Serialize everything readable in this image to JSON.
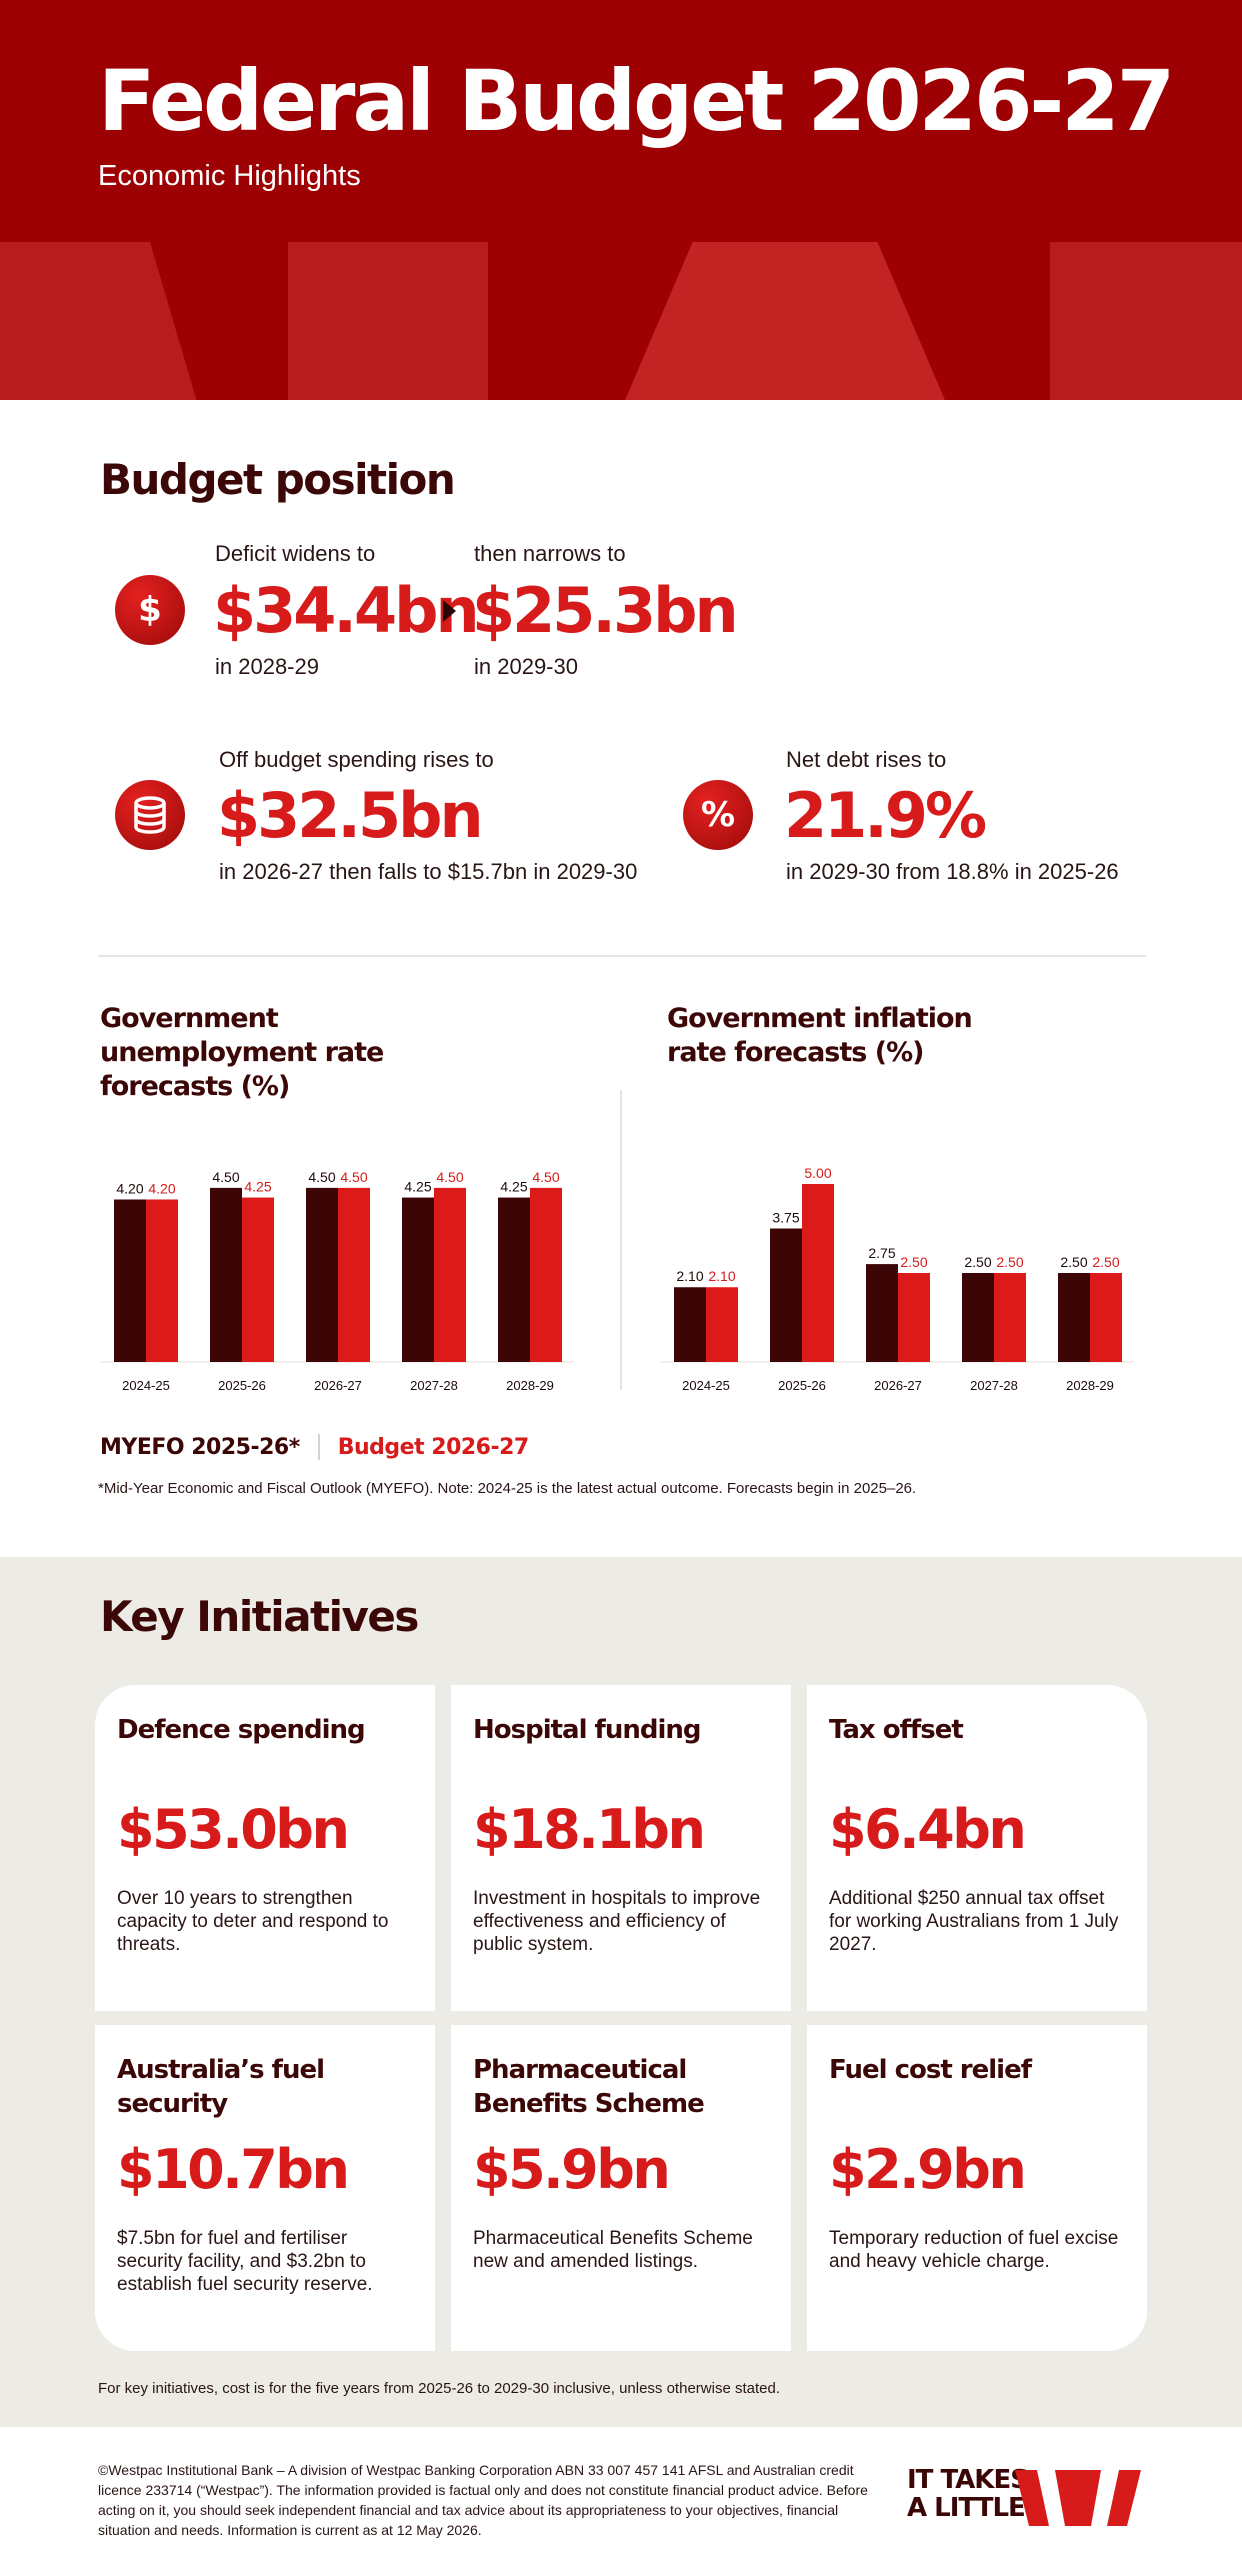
{
  "header": {
    "title": "Federal Budget 2026-27",
    "subtitle": "Economic Highlights"
  },
  "budget_position": {
    "title": "Budget position",
    "deficit": {
      "icon": "dollar-icon",
      "icon_glyph": "$",
      "label": "Deficit widens to",
      "value": "$34.4bn",
      "period": "in 2028-29"
    },
    "narrows": {
      "label": "then narrows to",
      "value": "$25.3bn",
      "period": "in 2029-30"
    },
    "off_budget": {
      "icon": "coins-icon",
      "label": "Off budget spending rises to",
      "value": "$32.5bn",
      "detail": "in 2026-27 then falls to $15.7bn in 2029-30"
    },
    "net_debt": {
      "icon": "percent-icon",
      "icon_glyph": "%",
      "label": "Net debt rises to",
      "value": "21.9%",
      "detail": "in 2029-30 from 18.8% in 2025-26"
    }
  },
  "charts": {
    "unemployment_title": "Government unemployment rate forecasts (%)",
    "inflation_title": "Government inflation rate forecasts (%)",
    "legend": {
      "myefo": "MYEFO 2025-26*",
      "budget": "Budget 2026-27"
    },
    "footnote": "*Mid-Year Economic and Fiscal Outlook (MYEFO). Note: 2024-25 is the latest actual outcome. Forecasts begin in 2025–26."
  },
  "chart_data": [
    {
      "type": "bar",
      "title": "Government unemployment rate forecasts (%)",
      "categories": [
        "2024-25",
        "2025-26",
        "2026-27",
        "2027-28",
        "2028-29"
      ],
      "series": [
        {
          "name": "MYEFO 2025-26*",
          "values": [
            4.2,
            4.5,
            4.5,
            4.25,
            4.25
          ],
          "labels": [
            "4.20",
            "4.50",
            "4.50",
            "4.25",
            "4.25"
          ],
          "color": "#3d0606"
        },
        {
          "name": "Budget 2026-27",
          "values": [
            4.2,
            4.25,
            4.5,
            4.5,
            4.5
          ],
          "labels": [
            "4.20",
            "4.25",
            "4.50",
            "4.50",
            "4.50"
          ],
          "color": "#dc1a1a"
        }
      ],
      "ylim": [
        0,
        4.6
      ],
      "grid": false,
      "legend": "bottom-left"
    },
    {
      "type": "bar",
      "title": "Government inflation rate forecasts (%)",
      "categories": [
        "2024-25",
        "2025-26",
        "2026-27",
        "2027-28",
        "2028-29"
      ],
      "series": [
        {
          "name": "MYEFO 2025-26*",
          "values": [
            2.1,
            3.75,
            2.75,
            2.5,
            2.5
          ],
          "labels": [
            "2.10",
            "3.75",
            "2.75",
            "2.50",
            "2.50"
          ],
          "color": "#3d0606"
        },
        {
          "name": "Budget 2026-27",
          "values": [
            2.1,
            5.0,
            2.5,
            2.5,
            2.5
          ],
          "labels": [
            "2.10",
            "5.00",
            "2.50",
            "2.50",
            "2.50"
          ],
          "color": "#dc1a1a"
        }
      ],
      "ylim": [
        0,
        5.0
      ],
      "grid": false,
      "legend": "bottom-left"
    }
  ],
  "key_initiatives": {
    "title": "Key Initiatives",
    "note": "For key initiatives, cost is for the five years from 2025-26 to 2029-30 inclusive, unless otherwise stated.",
    "cards": [
      {
        "title": "Defence spending",
        "amount": "$53.0bn",
        "description": "Over 10 years to strengthen capacity to deter and respond to threats."
      },
      {
        "title": "Hospital funding",
        "amount": "$18.1bn",
        "description": "Investment in hospitals to improve effectiveness and efficiency of public system."
      },
      {
        "title": "Tax offset",
        "amount": "$6.4bn",
        "description": "Additional $250 annual tax offset for working Australians from 1 July 2027."
      },
      {
        "title": "Australia’s fuel security",
        "amount": "$10.7bn",
        "description": "$7.5bn for fuel and fertiliser security facility, and $3.2bn to establish fuel security reserve."
      },
      {
        "title": "Pharmaceutical Benefits Scheme",
        "amount": "$5.9bn",
        "description": "Pharmaceutical Benefits Scheme new and amended listings."
      },
      {
        "title": "Fuel cost relief",
        "amount": "$2.9bn",
        "description": "Temporary reduction of fuel excise and heavy vehicle charge."
      }
    ]
  },
  "footer": {
    "disclaimer": "©Westpac Institutional Bank – A division of Westpac Banking Corporation ABN 33 007 457 141 AFSL and Australian credit licence 233714 (“Westpac”). The information provided is factual only and does not constitute financial product advice. Before acting on it, you should seek independent financial and tax advice about its appropriateness to your objectives, financial situation and needs. Information is current as at 12 May 2026.",
    "tagline_line1": "IT TAKES",
    "tagline_line2": "A LITTLE",
    "logo": "westpac-w-logo"
  },
  "colors": {
    "brand_red": "#d71a1a",
    "header_red": "#9e0104",
    "dark_maroon": "#3d0606",
    "panel_grey": "#edebe6"
  }
}
